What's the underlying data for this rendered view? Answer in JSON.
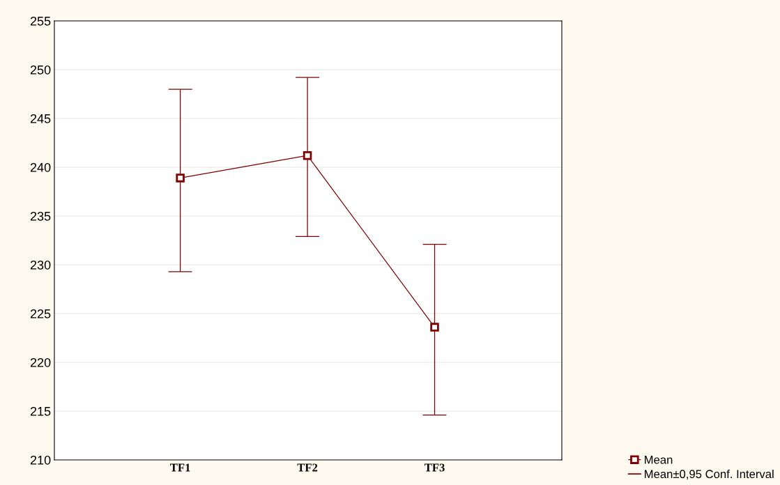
{
  "chart_data": {
    "type": "line",
    "categories": [
      "TF1",
      "TF2",
      "TF3"
    ],
    "series": [
      {
        "name": "Mean",
        "color": "#800000",
        "values": [
          238.9,
          241.2,
          223.6
        ],
        "errors": [
          [
            229.3,
            248.0
          ],
          [
            232.9,
            249.2
          ],
          [
            214.6,
            232.1
          ]
        ]
      }
    ],
    "annotations": [
      "Mean±0,95 Conf. Interval"
    ],
    "ylim": [
      210,
      255
    ],
    "yticks": [
      210,
      215,
      220,
      225,
      230,
      235,
      240,
      245,
      250,
      255
    ],
    "grid": "y",
    "marker": "square",
    "line_style": "solid",
    "legend": "bottom right"
  }
}
